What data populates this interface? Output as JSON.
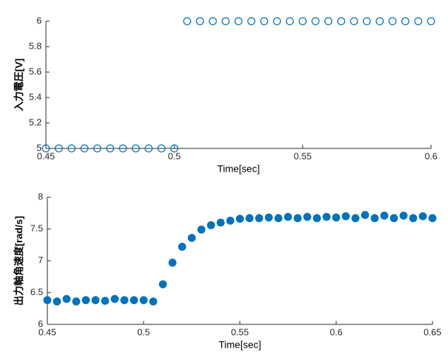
{
  "chart_data": [
    {
      "type": "scatter",
      "filled": false,
      "color": "#0072bd",
      "xlabel": "Time[sec]",
      "ylabel": "入力電圧[V]",
      "x": [
        0.45,
        0.455,
        0.46,
        0.465,
        0.47,
        0.475,
        0.48,
        0.485,
        0.49,
        0.495,
        0.5,
        0.505,
        0.51,
        0.515,
        0.52,
        0.525,
        0.53,
        0.535,
        0.54,
        0.545,
        0.55,
        0.555,
        0.56,
        0.565,
        0.57,
        0.575,
        0.58,
        0.585,
        0.59,
        0.595,
        0.6
      ],
      "values": [
        5,
        5,
        5,
        5,
        5,
        5,
        5,
        5,
        5,
        5,
        5,
        6,
        6,
        6,
        6,
        6,
        6,
        6,
        6,
        6,
        6,
        6,
        6,
        6,
        6,
        6,
        6,
        6,
        6,
        6,
        6
      ],
      "xlim": [
        0.45,
        0.6
      ],
      "xticks": [
        0.45,
        0.5,
        0.55,
        0.6
      ],
      "ylim": [
        5,
        6
      ],
      "yticks": [
        5,
        5.2,
        5.4,
        5.6,
        5.8,
        6
      ]
    },
    {
      "type": "scatter",
      "filled": true,
      "color": "#0072bd",
      "xlabel": "Time[sec]",
      "ylabel": "出力軸角速度[rad/s]",
      "x": [
        0.45,
        0.455,
        0.46,
        0.465,
        0.47,
        0.475,
        0.48,
        0.485,
        0.49,
        0.495,
        0.5,
        0.505,
        0.51,
        0.515,
        0.52,
        0.525,
        0.53,
        0.535,
        0.54,
        0.545,
        0.55,
        0.555,
        0.56,
        0.565,
        0.57,
        0.575,
        0.58,
        0.585,
        0.59,
        0.595,
        0.6,
        0.605,
        0.61,
        0.615,
        0.62,
        0.625,
        0.63,
        0.635,
        0.64,
        0.645,
        0.65
      ],
      "values": [
        6.38,
        6.36,
        6.4,
        6.36,
        6.38,
        6.38,
        6.37,
        6.4,
        6.38,
        6.38,
        6.38,
        6.36,
        6.63,
        6.97,
        7.22,
        7.36,
        7.49,
        7.56,
        7.6,
        7.63,
        7.66,
        7.67,
        7.67,
        7.68,
        7.67,
        7.69,
        7.67,
        7.69,
        7.67,
        7.69,
        7.68,
        7.7,
        7.67,
        7.72,
        7.67,
        7.71,
        7.67,
        7.71,
        7.67,
        7.7,
        7.67
      ],
      "xlim": [
        0.45,
        0.65
      ],
      "xticks": [
        0.45,
        0.5,
        0.55,
        0.6,
        0.65
      ],
      "ylim": [
        6,
        8
      ],
      "yticks": [
        6,
        6.5,
        7,
        7.5,
        8
      ]
    }
  ]
}
